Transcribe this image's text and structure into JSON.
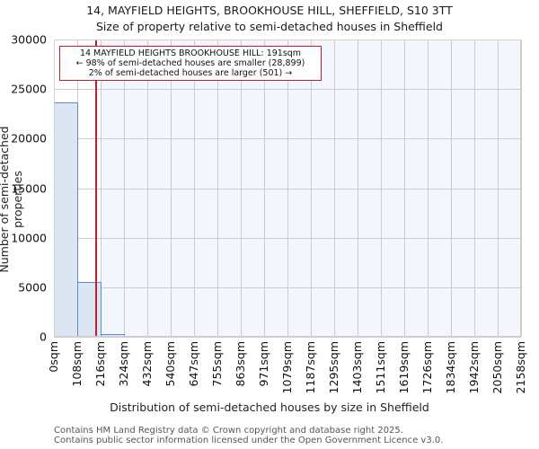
{
  "header": {
    "title_line1": "14, MAYFIELD HEIGHTS, BROOKHOUSE HILL, SHEFFIELD, S10 3TT",
    "title_line2": "Size of property relative to semi-detached houses in Sheffield"
  },
  "annotation": {
    "line1": "14 MAYFIELD HEIGHTS BROOKHOUSE HILL: 191sqm",
    "line2": "← 98% of semi-detached houses are smaller (28,899)",
    "line3": "2% of semi-detached houses are larger (501) →"
  },
  "axes": {
    "xlabel": "Distribution of semi-detached houses by size in Sheffield",
    "ylabel": "Number of semi-detached properties",
    "yticks": [
      "0",
      "5000",
      "10000",
      "15000",
      "20000",
      "25000",
      "30000"
    ],
    "xticks": [
      "0sqm",
      "108sqm",
      "216sqm",
      "324sqm",
      "432sqm",
      "540sqm",
      "647sqm",
      "755sqm",
      "863sqm",
      "971sqm",
      "1079sqm",
      "1187sqm",
      "1295sqm",
      "1403sqm",
      "1511sqm",
      "1619sqm",
      "1726sqm",
      "1834sqm",
      "1942sqm",
      "2050sqm",
      "2158sqm"
    ]
  },
  "footer": {
    "line1": "Contains HM Land Registry data © Crown copyright and database right 2025.",
    "line2": "Contains public sector information licensed under the Open Government Licence v3.0."
  },
  "colors": {
    "bar_fill": "#dce6f2",
    "bar_edge": "#5b8bcb",
    "property_line": "#bf1e2e",
    "larger_region_bg": "#f3f6fd",
    "grid": "#cccccc"
  },
  "chart_data": {
    "type": "bar",
    "title": "14, MAYFIELD HEIGHTS, BROOKHOUSE HILL, SHEFFIELD, S10 3TT — Size of property relative to semi-detached houses in Sheffield",
    "xlabel": "Distribution of semi-detached houses by size in Sheffield",
    "ylabel": "Number of semi-detached properties",
    "ylim": [
      0,
      30000
    ],
    "grid": true,
    "categories": [
      "0-108sqm",
      "108-216sqm",
      "216-324sqm",
      "324-432sqm",
      "432-540sqm",
      "540-647sqm",
      "647-755sqm",
      "755-863sqm",
      "863-971sqm",
      "971-1079sqm",
      "1079-1187sqm",
      "1187-1295sqm",
      "1295-1403sqm",
      "1403-1511sqm",
      "1511-1619sqm",
      "1619-1726sqm",
      "1726-1834sqm",
      "1834-1942sqm",
      "1942-2050sqm",
      "2050-2158sqm"
    ],
    "values": [
      23650,
      5530,
      300,
      0,
      0,
      0,
      0,
      0,
      0,
      0,
      0,
      0,
      0,
      0,
      0,
      0,
      0,
      0,
      0,
      0
    ],
    "x_tick_labels": [
      "0sqm",
      "108sqm",
      "216sqm",
      "324sqm",
      "432sqm",
      "540sqm",
      "647sqm",
      "755sqm",
      "863sqm",
      "971sqm",
      "1079sqm",
      "1187sqm",
      "1295sqm",
      "1403sqm",
      "1511sqm",
      "1619sqm",
      "1726sqm",
      "1834sqm",
      "1942sqm",
      "2050sqm",
      "2158sqm"
    ],
    "y_tick_labels": [
      0,
      5000,
      10000,
      15000,
      20000,
      25000,
      30000
    ],
    "property_marker": {
      "value_sqm": 191,
      "label": "14 MAYFIELD HEIGHTS BROOKHOUSE HILL: 191sqm",
      "smaller_pct": 98,
      "smaller_count": 28899,
      "larger_pct": 2,
      "larger_count": 501
    },
    "annotations": [
      "14 MAYFIELD HEIGHTS BROOKHOUSE HILL: 191sqm",
      "← 98% of semi-detached houses are smaller (28,899)",
      "2% of semi-detached houses are larger (501) →"
    ]
  }
}
